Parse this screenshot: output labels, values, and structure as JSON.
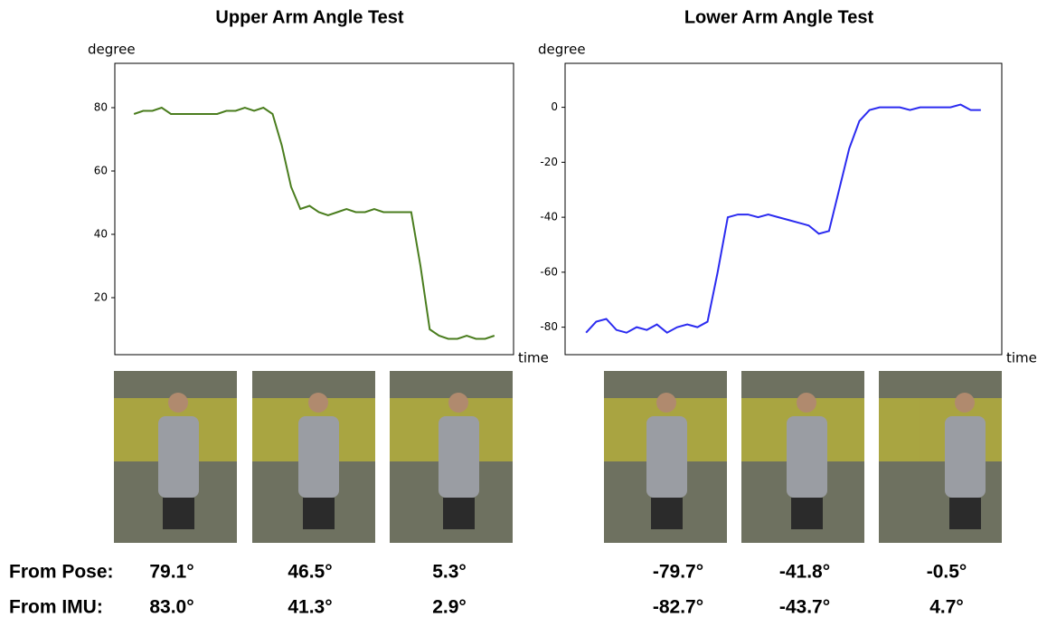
{
  "chart_data": [
    {
      "type": "line",
      "title": "Upper Arm Angle Test",
      "y_label": "degree",
      "x_label": "time",
      "categories": [
        null,
        null,
        null,
        null,
        null,
        null,
        null,
        null,
        null,
        null,
        null,
        null,
        null,
        null,
        null,
        null,
        null,
        null,
        null,
        null,
        null,
        null,
        null,
        null,
        null,
        null,
        null,
        null,
        null,
        null,
        null,
        null,
        null,
        null,
        null,
        null,
        null,
        null,
        null,
        null
      ],
      "values": [
        78,
        79,
        79,
        80,
        78,
        78,
        78,
        78,
        78,
        78,
        79,
        79,
        80,
        79,
        80,
        78,
        68,
        55,
        48,
        49,
        47,
        46,
        47,
        48,
        47,
        47,
        48,
        47,
        47,
        47,
        47,
        30,
        10,
        8,
        7,
        7,
        8,
        7,
        7,
        8
      ],
      "color": "#4a7d1e",
      "ylim": [
        2,
        94
      ],
      "yticks": [
        20,
        40,
        60,
        80
      ]
    },
    {
      "type": "line",
      "title": "Lower Arm Angle Test",
      "y_label": "degree",
      "x_label": "time",
      "categories": [
        null,
        null,
        null,
        null,
        null,
        null,
        null,
        null,
        null,
        null,
        null,
        null,
        null,
        null,
        null,
        null,
        null,
        null,
        null,
        null,
        null,
        null,
        null,
        null,
        null,
        null,
        null,
        null,
        null,
        null,
        null,
        null,
        null,
        null,
        null,
        null,
        null,
        null,
        null,
        null
      ],
      "values": [
        -82,
        -78,
        -77,
        -81,
        -82,
        -80,
        -81,
        -79,
        -82,
        -80,
        -79,
        -80,
        -78,
        -60,
        -40,
        -39,
        -39,
        -40,
        -39,
        -40,
        -41,
        -42,
        -43,
        -46,
        -45,
        -30,
        -15,
        -5,
        -1,
        0,
        0,
        0,
        -1,
        0,
        0,
        0,
        0,
        1,
        -1,
        -1
      ],
      "color": "#2b2bf0",
      "ylim": [
        -90,
        16
      ],
      "yticks": [
        -80,
        -60,
        -40,
        -20,
        0
      ]
    }
  ],
  "table": {
    "rows": [
      [
        "From Pose:",
        "79.1°",
        "46.5°",
        "5.3°",
        "-79.7°",
        "-41.8°",
        "-0.5°"
      ],
      [
        "From IMU:",
        "83.0°",
        "41.3°",
        "2.9°",
        "-82.7°",
        "-43.7°",
        "4.7°"
      ]
    ]
  }
}
